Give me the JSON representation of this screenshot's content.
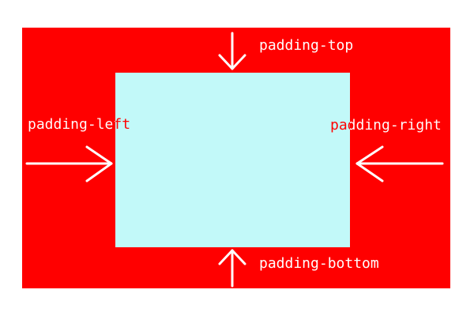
{
  "labels": {
    "top": "padding-top",
    "left": "padding-left",
    "right": "padding-right",
    "bottom": "padding-bottom"
  },
  "colors": {
    "padding": "#ff0000",
    "content": "#c2f9f9",
    "arrow": "#ffffff",
    "label_on_padding": "#ffffff",
    "label_on_content": "#ff0000",
    "background": "#ffffff"
  },
  "icons": {
    "top": "arrow-down-icon",
    "left": "arrow-right-icon",
    "right": "arrow-left-icon",
    "bottom": "arrow-up-icon"
  }
}
